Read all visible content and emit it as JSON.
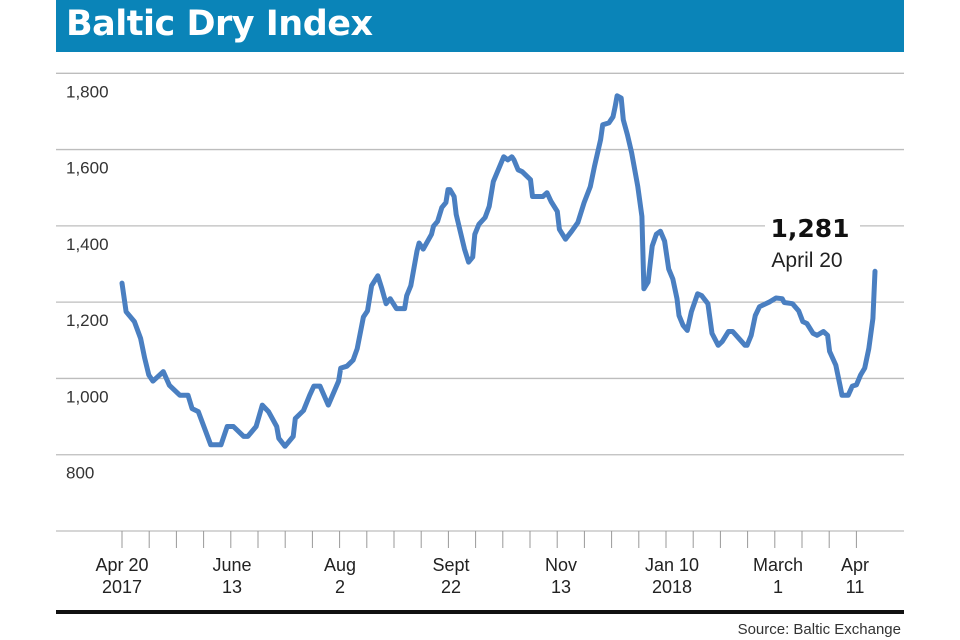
{
  "chart_data": {
    "type": "line",
    "title": "Baltic Dry Index",
    "xlabel": "",
    "ylabel": "",
    "ylim": [
      600,
      1800
    ],
    "yticks": [
      {
        "value": 1800,
        "label": "1,800"
      },
      {
        "value": 1600,
        "label": "1,600"
      },
      {
        "value": 1400,
        "label": "1,400"
      },
      {
        "value": 1200,
        "label": "1,200"
      },
      {
        "value": 1000,
        "label": "1,000"
      },
      {
        "value": 800,
        "label": "800"
      }
    ],
    "xlim": [
      "2017-04-20",
      "2018-04-20"
    ],
    "xticks": [
      {
        "date": "2017-04-20",
        "line1": "Apr 20",
        "line2": "2017"
      },
      {
        "date": "2017-06-13",
        "line1": "June",
        "line2": "13"
      },
      {
        "date": "2017-08-06",
        "line1": "Aug",
        "line2": "2"
      },
      {
        "date": "2017-09-29",
        "line1": "Sept",
        "line2": "22"
      },
      {
        "date": "2017-11-21",
        "line1": "Nov",
        "line2": "13"
      },
      {
        "date": "2018-01-14",
        "line1": "Jan 10",
        "line2": "2018"
      },
      {
        "date": "2018-03-07",
        "line1": "March",
        "line2": "1"
      },
      {
        "date": "2018-04-11",
        "line1": "Apr",
        "line2": "11"
      }
    ],
    "grid": true,
    "line_color": "#4a7fc1",
    "annotation": {
      "value": "1,281",
      "label": "April 20"
    },
    "source": "Source: Baltic Exchange",
    "series": [
      {
        "x": [
          "2017-04-20",
          "2017-04-22",
          "2017-04-26",
          "2017-04-29",
          "2017-05-01",
          "2017-05-03",
          "2017-05-05",
          "2017-05-07",
          "2017-05-10",
          "2017-05-13",
          "2017-05-18",
          "2017-05-22",
          "2017-05-24",
          "2017-05-27",
          "2017-06-02",
          "2017-06-07",
          "2017-06-10",
          "2017-06-13",
          "2017-06-18",
          "2017-06-20",
          "2017-06-24",
          "2017-06-27",
          "2017-06-30",
          "2017-07-04",
          "2017-07-05",
          "2017-07-08",
          "2017-07-12",
          "2017-07-13",
          "2017-07-17",
          "2017-07-20",
          "2017-07-22",
          "2017-07-25",
          "2017-07-29",
          "2017-08-03",
          "2017-08-04",
          "2017-08-07",
          "2017-08-10",
          "2017-08-12",
          "2017-08-15",
          "2017-08-17",
          "2017-08-19",
          "2017-08-22",
          "2017-08-24",
          "2017-08-26",
          "2017-08-28",
          "2017-08-31",
          "2017-09-04",
          "2017-09-05",
          "2017-09-07",
          "2017-09-10",
          "2017-09-11",
          "2017-09-13",
          "2017-09-17",
          "2017-09-18",
          "2017-09-20",
          "2017-09-22",
          "2017-09-24",
          "2017-09-25",
          "2017-09-26",
          "2017-09-28",
          "2017-09-29",
          "2017-10-03",
          "2017-10-05",
          "2017-10-07",
          "2017-10-08",
          "2017-10-10",
          "2017-10-13",
          "2017-10-15",
          "2017-10-17",
          "2017-10-22",
          "2017-10-24",
          "2017-10-26",
          "2017-10-27",
          "2017-10-29",
          "2017-10-31",
          "2017-11-04",
          "2017-11-05",
          "2017-11-10",
          "2017-11-12",
          "2017-11-14",
          "2017-11-17",
          "2017-11-18",
          "2017-11-21",
          "2017-11-24",
          "2017-11-27",
          "2017-11-30",
          "2017-12-03",
          "2017-12-05",
          "2017-12-08",
          "2017-12-09",
          "2017-12-12",
          "2017-12-14",
          "2017-12-15",
          "2017-12-16",
          "2017-12-18",
          "2017-12-19",
          "2017-12-21",
          "2017-12-23",
          "2017-12-26",
          "2017-12-28",
          "2017-12-29",
          "2017-12-31",
          "2018-01-02",
          "2018-01-04",
          "2018-01-06",
          "2018-01-08",
          "2018-01-10",
          "2018-01-12",
          "2018-01-14",
          "2018-01-15",
          "2018-01-17",
          "2018-01-19",
          "2018-01-21",
          "2018-01-24",
          "2018-01-26",
          "2018-01-29",
          "2018-01-31",
          "2018-02-03",
          "2018-02-05",
          "2018-02-08",
          "2018-02-10",
          "2018-02-14",
          "2018-02-16",
          "2018-02-17",
          "2018-02-19",
          "2018-02-21",
          "2018-02-23",
          "2018-02-26",
          "2018-02-28",
          "2018-03-03",
          "2018-03-06",
          "2018-03-07",
          "2018-03-11",
          "2018-03-14",
          "2018-03-16",
          "2018-03-18",
          "2018-03-21",
          "2018-03-23",
          "2018-03-26",
          "2018-03-28",
          "2018-03-29",
          "2018-04-01",
          "2018-04-03",
          "2018-04-04",
          "2018-04-07",
          "2018-04-09",
          "2018-04-11",
          "2018-04-13",
          "2018-04-15",
          "2018-04-17",
          "2018-04-19",
          "2018-04-20"
        ],
        "y": [
          1250,
          1175,
          1149,
          1105,
          1053,
          1009,
          993,
          1003,
          1018,
          982,
          956,
          956,
          921,
          913,
          826,
          826,
          874,
          874,
          848,
          848,
          874,
          930,
          913,
          874,
          843,
          822,
          848,
          895,
          916,
          956,
          980,
          980,
          930,
          993,
          1027,
          1032,
          1048,
          1078,
          1161,
          1177,
          1243,
          1269,
          1235,
          1196,
          1209,
          1183,
          1183,
          1217,
          1243,
          1334,
          1355,
          1339,
          1378,
          1399,
          1412,
          1448,
          1461,
          1495,
          1495,
          1477,
          1430,
          1339,
          1305,
          1318,
          1378,
          1404,
          1422,
          1451,
          1516,
          1581,
          1573,
          1581,
          1573,
          1547,
          1542,
          1521,
          1477,
          1477,
          1487,
          1464,
          1438,
          1391,
          1365,
          1386,
          1409,
          1461,
          1503,
          1555,
          1626,
          1665,
          1670,
          1686,
          1712,
          1741,
          1735,
          1678,
          1639,
          1592,
          1503,
          1425,
          1235,
          1253,
          1347,
          1378,
          1386,
          1360,
          1287,
          1261,
          1209,
          1165,
          1139,
          1126,
          1175,
          1222,
          1217,
          1196,
          1118,
          1087,
          1097,
          1123,
          1123,
          1099,
          1087,
          1087,
          1113,
          1165,
          1188,
          1196,
          1201,
          1211,
          1209,
          1199,
          1196,
          1177,
          1149,
          1144,
          1118,
          1113,
          1123,
          1113,
          1071,
          1035,
          983,
          956,
          956,
          980,
          983,
          1009,
          1027,
          1078,
          1157,
          1281
        ]
      }
    ]
  }
}
